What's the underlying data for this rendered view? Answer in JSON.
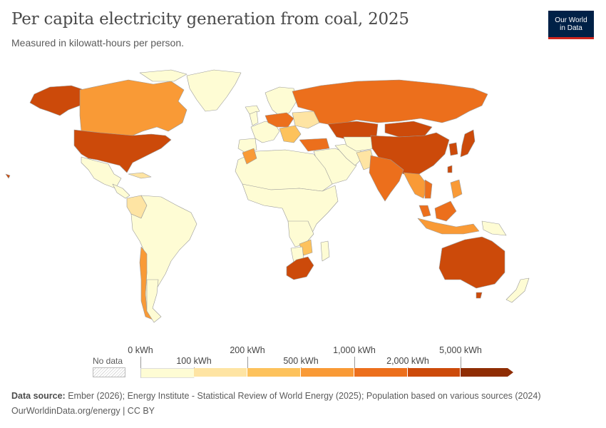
{
  "header": {
    "title": "Per capita electricity generation from coal, 2025",
    "subtitle": "Measured in kilowatt-hours per person.",
    "logo_line1": "Our World",
    "logo_line2": "in Data"
  },
  "legend": {
    "no_data_label": "No data",
    "bins": [
      {
        "label": "0 kWh",
        "color": "#fefcd4"
      },
      {
        "label": "100 kWh",
        "color": "#fee4a3"
      },
      {
        "label": "200 kWh",
        "color": "#fdc25c"
      },
      {
        "label": "500 kWh",
        "color": "#f99a36"
      },
      {
        "label": "1,000 kWh",
        "color": "#ec6f1c"
      },
      {
        "label": "2,000 kWh",
        "color": "#cc4a0a"
      },
      {
        "label": "5,000 kWh",
        "color": "#8f2d04"
      }
    ]
  },
  "footer": {
    "source_prefix": "Data source:",
    "source_text": " Ember (2026); Energy Institute - Statistical Review of World Energy (2025); Population based on various sources (2024)",
    "link_text": "OurWorldinData.org/energy | CC BY"
  },
  "colors": {
    "very_low": "#fefcd4",
    "low": "#fee4a3",
    "mid_low": "#fdc25c",
    "mid": "#f99a36",
    "high": "#ec6f1c",
    "very_high": "#cc4a0a",
    "border": "#9a9a9a",
    "logo_bg": "#002147",
    "logo_accent": "#ce261e"
  }
}
